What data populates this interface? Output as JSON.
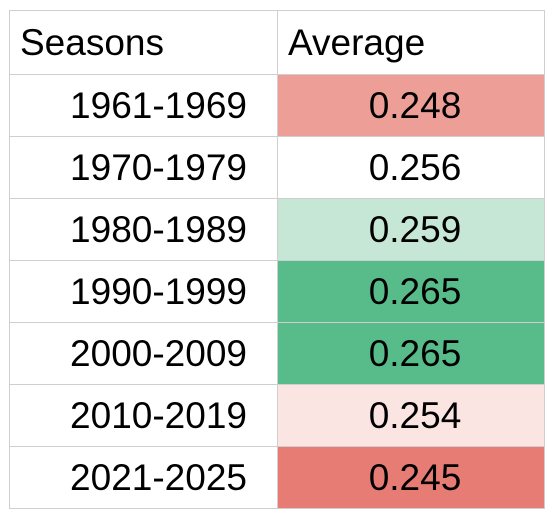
{
  "table": {
    "headers": {
      "seasons": "Seasons",
      "average": "Average"
    },
    "rows": [
      {
        "seasons": "1961-1969",
        "average": "0.248",
        "fill": "#ed9e97"
      },
      {
        "seasons": "1970-1979",
        "average": "0.256",
        "fill": "#ffffff"
      },
      {
        "seasons": "1980-1989",
        "average": "0.259",
        "fill": "#c6e6d6"
      },
      {
        "seasons": "1990-1999",
        "average": "0.265",
        "fill": "#57bb8a"
      },
      {
        "seasons": "2000-2009",
        "average": "0.265",
        "fill": "#57bb8a"
      },
      {
        "seasons": "2010-2019",
        "average": "0.254",
        "fill": "#fbe5e3"
      },
      {
        "seasons": "2021-2025",
        "average": "0.245",
        "fill": "#e67c73"
      }
    ]
  },
  "colors": {
    "grid_border": "#cfcfcf",
    "scale_low": "#e67c73",
    "scale_mid": "#ffffff",
    "scale_high": "#57bb8a"
  }
}
